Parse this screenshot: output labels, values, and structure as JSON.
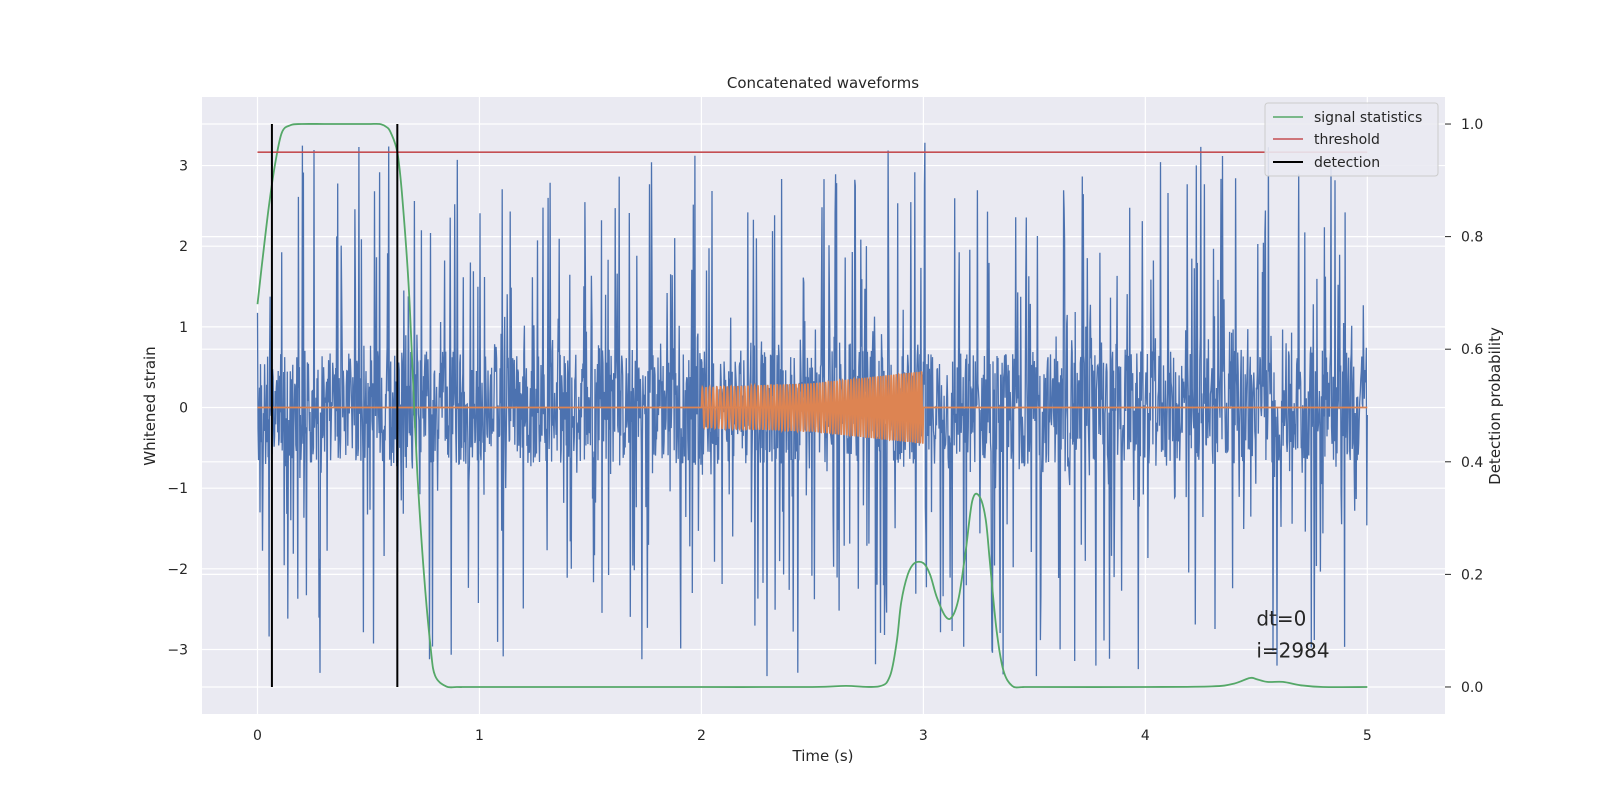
{
  "chart_data": {
    "type": "line",
    "title": "Concatenated waveforms",
    "xlabel": "Time (s)",
    "ylabel": "Whitened strain",
    "y2label": "Detection probability",
    "xlim": [
      -0.25,
      5.35
    ],
    "ylim": [
      -3.8,
      3.85
    ],
    "y2lim": [
      -0.048,
      1.048
    ],
    "xticks": [
      0,
      1,
      2,
      3,
      4,
      5
    ],
    "yticks": [
      -3,
      -2,
      -1,
      0,
      1,
      2,
      3
    ],
    "y2ticks": [
      0.0,
      0.2,
      0.4,
      0.6,
      0.8,
      1.0
    ],
    "xtick_labels": [
      "0",
      "1",
      "2",
      "3",
      "4",
      "5"
    ],
    "ytick_labels": [
      "−3",
      "−2",
      "−1",
      "0",
      "1",
      "2",
      "3"
    ],
    "y2tick_labels": [
      "0.0",
      "0.2",
      "0.4",
      "0.6",
      "0.8",
      "1.0"
    ],
    "grid": true,
    "legend_position": "top-right",
    "colors": {
      "background": "#eaeaf2",
      "grid": "#ffffff",
      "noise": "#4c72b0",
      "injection": "#dd8452",
      "signal_statistics": "#55a868",
      "threshold": "#c44e52",
      "detection": "#000000"
    },
    "series": [
      {
        "name": "whitened strain (noise)",
        "axis": "left",
        "x_range": [
          0,
          5
        ],
        "envelope": 0.7,
        "max_spike_up": 3.35,
        "max_spike_down": -3.45
      },
      {
        "name": "injected waveform",
        "axis": "left",
        "x": [
          0,
          2,
          2,
          2.5,
          3,
          3,
          5
        ],
        "amplitude": [
          0,
          0,
          0.25,
          0.3,
          0.45,
          0,
          0
        ],
        "cycles": 60
      },
      {
        "name": "signal statistics",
        "axis": "right",
        "x": [
          0.0,
          0.02,
          0.05,
          0.08,
          0.11,
          0.15,
          0.2,
          0.3,
          0.4,
          0.5,
          0.55,
          0.58,
          0.6,
          0.63,
          0.65,
          0.68,
          0.7,
          0.72,
          0.75,
          0.78,
          0.8,
          0.85,
          0.9,
          1.0,
          1.5,
          2.0,
          2.5,
          2.65,
          2.8,
          2.85,
          2.88,
          2.9,
          2.93,
          2.96,
          3.0,
          3.03,
          3.06,
          3.1,
          3.13,
          3.16,
          3.19,
          3.22,
          3.25,
          3.28,
          3.3,
          3.33,
          3.36,
          3.4,
          3.45,
          3.5,
          4.0,
          4.3,
          4.4,
          4.47,
          4.5,
          4.55,
          4.62,
          4.7,
          4.8,
          5.0
        ],
        "values": [
          0.68,
          0.75,
          0.85,
          0.93,
          0.985,
          0.998,
          1.0,
          1.0,
          1.0,
          1.0,
          1.0,
          0.995,
          0.985,
          0.95,
          0.88,
          0.72,
          0.55,
          0.38,
          0.2,
          0.07,
          0.02,
          0.001,
          0.0,
          0.0,
          0.0,
          0.0,
          0.0,
          0.002,
          0.001,
          0.02,
          0.08,
          0.15,
          0.2,
          0.22,
          0.22,
          0.2,
          0.16,
          0.125,
          0.125,
          0.16,
          0.24,
          0.33,
          0.34,
          0.3,
          0.22,
          0.1,
          0.03,
          0.002,
          0.0,
          0.0,
          0.0,
          0.001,
          0.006,
          0.016,
          0.014,
          0.009,
          0.009,
          0.003,
          0.0,
          0.0
        ]
      },
      {
        "name": "threshold",
        "axis": "right",
        "x": [
          0,
          5
        ],
        "values": [
          0.95,
          0.95
        ]
      },
      {
        "name": "detection",
        "axis": "right",
        "type": "vline",
        "x": [
          0.065,
          0.63
        ],
        "y_range": [
          0.0,
          1.0
        ]
      }
    ],
    "legend": [
      "signal statistics",
      "threshold",
      "detection"
    ],
    "annotations": [
      {
        "text": "dt=0",
        "x": 4.5,
        "y": -2.7
      },
      {
        "text": "i=2984",
        "x": 4.5,
        "y": -3.1
      }
    ]
  }
}
